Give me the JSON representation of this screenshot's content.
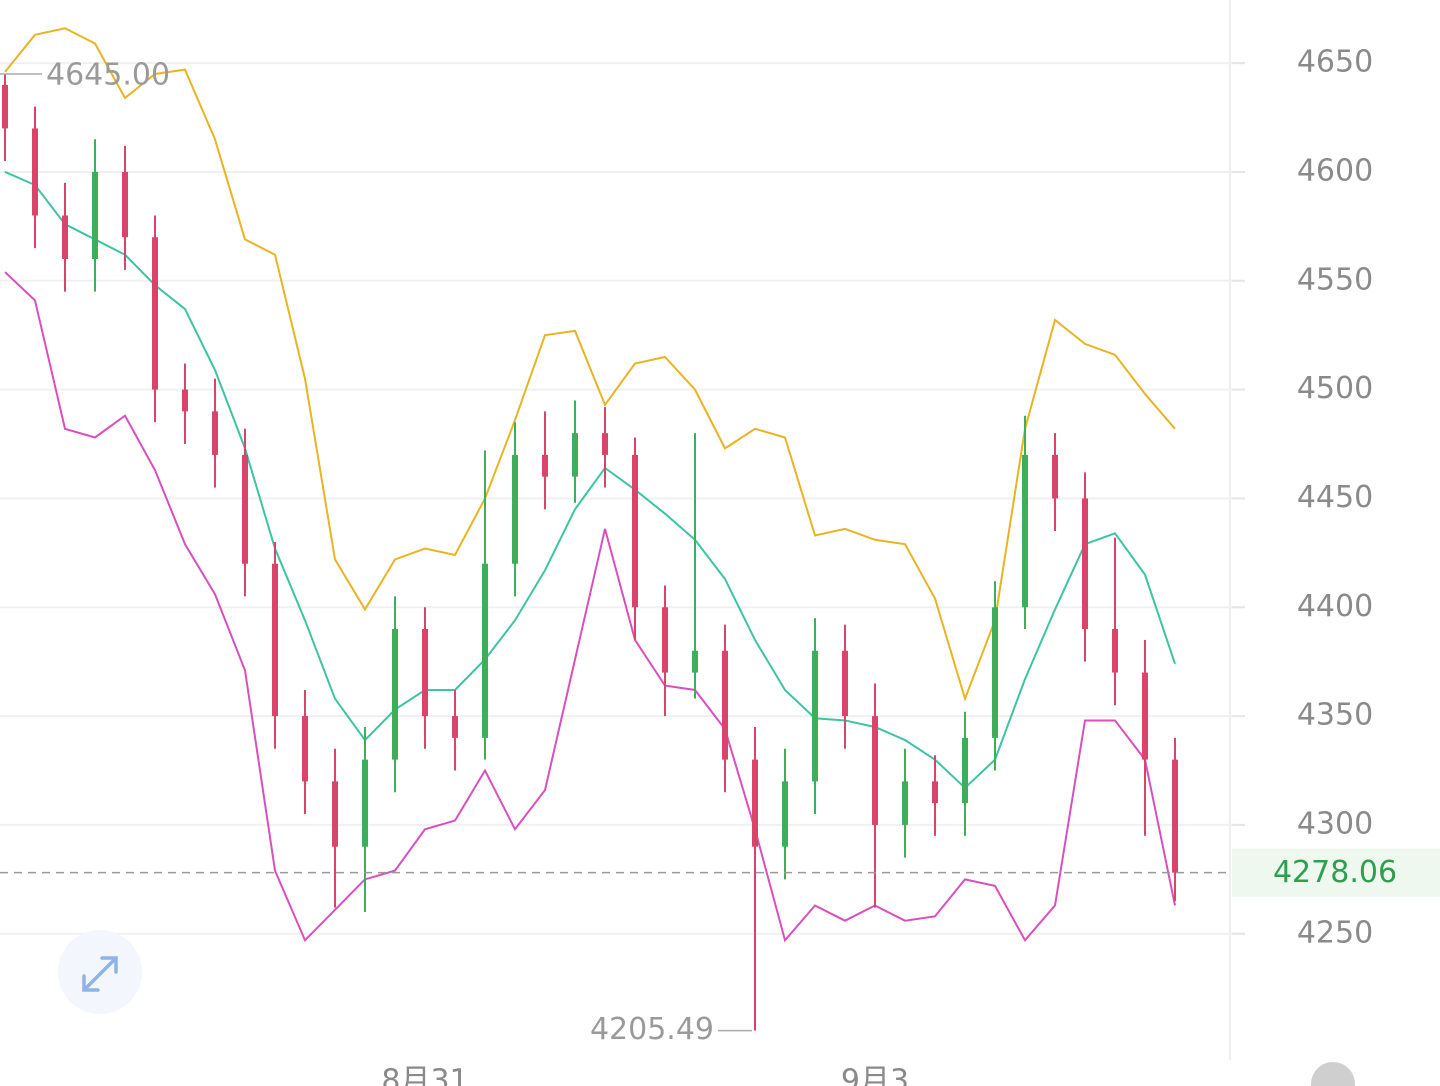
{
  "chart_data": {
    "type": "candlestick",
    "x": [
      null,
      null,
      null,
      null,
      null,
      null,
      null,
      null,
      null,
      null,
      null,
      null,
      null,
      null,
      "8月31",
      null,
      null,
      null,
      null,
      null,
      null,
      null,
      null,
      null,
      null,
      null,
      null,
      null,
      null,
      "9月3",
      null,
      null,
      null,
      null,
      null,
      null,
      null,
      null,
      null,
      null
    ],
    "open": [
      4640,
      4620,
      4580,
      4560,
      4600,
      4570,
      4500,
      4490,
      4470,
      4420,
      4350,
      4320,
      4290,
      4330,
      4390,
      4350,
      4340,
      4420,
      4470,
      4460,
      4480,
      4470,
      4400,
      4370,
      4380,
      4330,
      4290,
      4320,
      4380,
      4350,
      4300,
      4320,
      4310,
      4340,
      4400,
      4470,
      4450,
      4390,
      4370,
      4330
    ],
    "high": [
      4645.0,
      4630,
      4595,
      4615,
      4612,
      4580,
      4512,
      4505,
      4482,
      4430,
      4362,
      4335,
      4345,
      4405,
      4400,
      4362,
      4472,
      4485,
      4490,
      4495,
      4492,
      4478,
      4410,
      4480,
      4392,
      4345,
      4335,
      4395,
      4392,
      4365,
      4335,
      4332,
      4352,
      4412,
      4488,
      4480,
      4462,
      4432,
      4385,
      4340
    ],
    "low": [
      4605,
      4565,
      4545,
      4545,
      4555,
      4485,
      4475,
      4455,
      4405,
      4335,
      4305,
      4262,
      4260,
      4315,
      4335,
      4325,
      4330,
      4405,
      4445,
      4448,
      4455,
      4385,
      4350,
      4358,
      4315,
      4205.49,
      4275,
      4305,
      4335,
      4262,
      4285,
      4295,
      4295,
      4325,
      4390,
      4435,
      4375,
      4355,
      4295,
      4265
    ],
    "close": [
      4620,
      4580,
      4560,
      4600,
      4570,
      4500,
      4490,
      4470,
      4420,
      4350,
      4320,
      4290,
      4330,
      4390,
      4350,
      4340,
      4420,
      4470,
      4460,
      4480,
      4470,
      4400,
      4370,
      4380,
      4330,
      4290,
      4320,
      4380,
      4350,
      4300,
      4320,
      4310,
      4340,
      4400,
      4470,
      4450,
      4390,
      4370,
      4330,
      4278.06
    ],
    "up_color": "#3fae5a",
    "down_color": "#d9456a",
    "bands": [
      {
        "color": "#e8b423",
        "values": [
          4646,
          4663,
          4666,
          4659,
          4634,
          4645,
          4647,
          4615,
          4569,
          4562,
          4505,
          4422,
          4399,
          4422,
          4427,
          4424,
          4450,
          4486,
          4525,
          4527,
          4493,
          4512,
          4515,
          4500,
          4473,
          4482,
          4478,
          4433,
          4436,
          4431,
          4429,
          4404,
          4358,
          4394,
          4482,
          4532,
          4521,
          4516,
          4498,
          4482
        ]
      },
      {
        "color": "#3cc4a4",
        "values": [
          4600,
          4594,
          4576,
          4569,
          4562,
          4548,
          4537,
          4509,
          4473,
          4427,
          4394,
          4358,
          4339,
          4353,
          4362,
          4362,
          4376,
          4394,
          4417,
          4445,
          4464,
          4454,
          4443,
          4431,
          4413,
          4385,
          4362,
          4349,
          4348,
          4345,
          4339,
          4330,
          4317,
          4330,
          4367,
          4399,
          4429,
          4434,
          4415,
          4374
        ]
      },
      {
        "color": "#d94fbf",
        "values": [
          4554,
          4541,
          4482,
          4478,
          4488,
          4463,
          4429,
          4406,
          4371,
          4279,
          4247,
          4261,
          4275,
          4279,
          4298,
          4302,
          4325,
          4298,
          4316,
          4376,
          4436,
          4385,
          4364,
          4362,
          4344,
          4298,
          4247,
          4263,
          4256,
          4263,
          4256,
          4258,
          4275,
          4272,
          4247,
          4263,
          4348,
          4348,
          4330,
          4263
        ]
      }
    ],
    "annotations": [
      {
        "value": 4645.0,
        "label": "4645.00"
      },
      {
        "value": 4205.49,
        "label": "4205.49"
      }
    ],
    "last_price": {
      "value": 4278.06,
      "label": "4278.06"
    },
    "ylim": [
      4192,
      4679
    ],
    "yticks": [
      4250,
      4300,
      4350,
      4400,
      4450,
      4500,
      4550,
      4600,
      4650
    ],
    "grid": true
  }
}
